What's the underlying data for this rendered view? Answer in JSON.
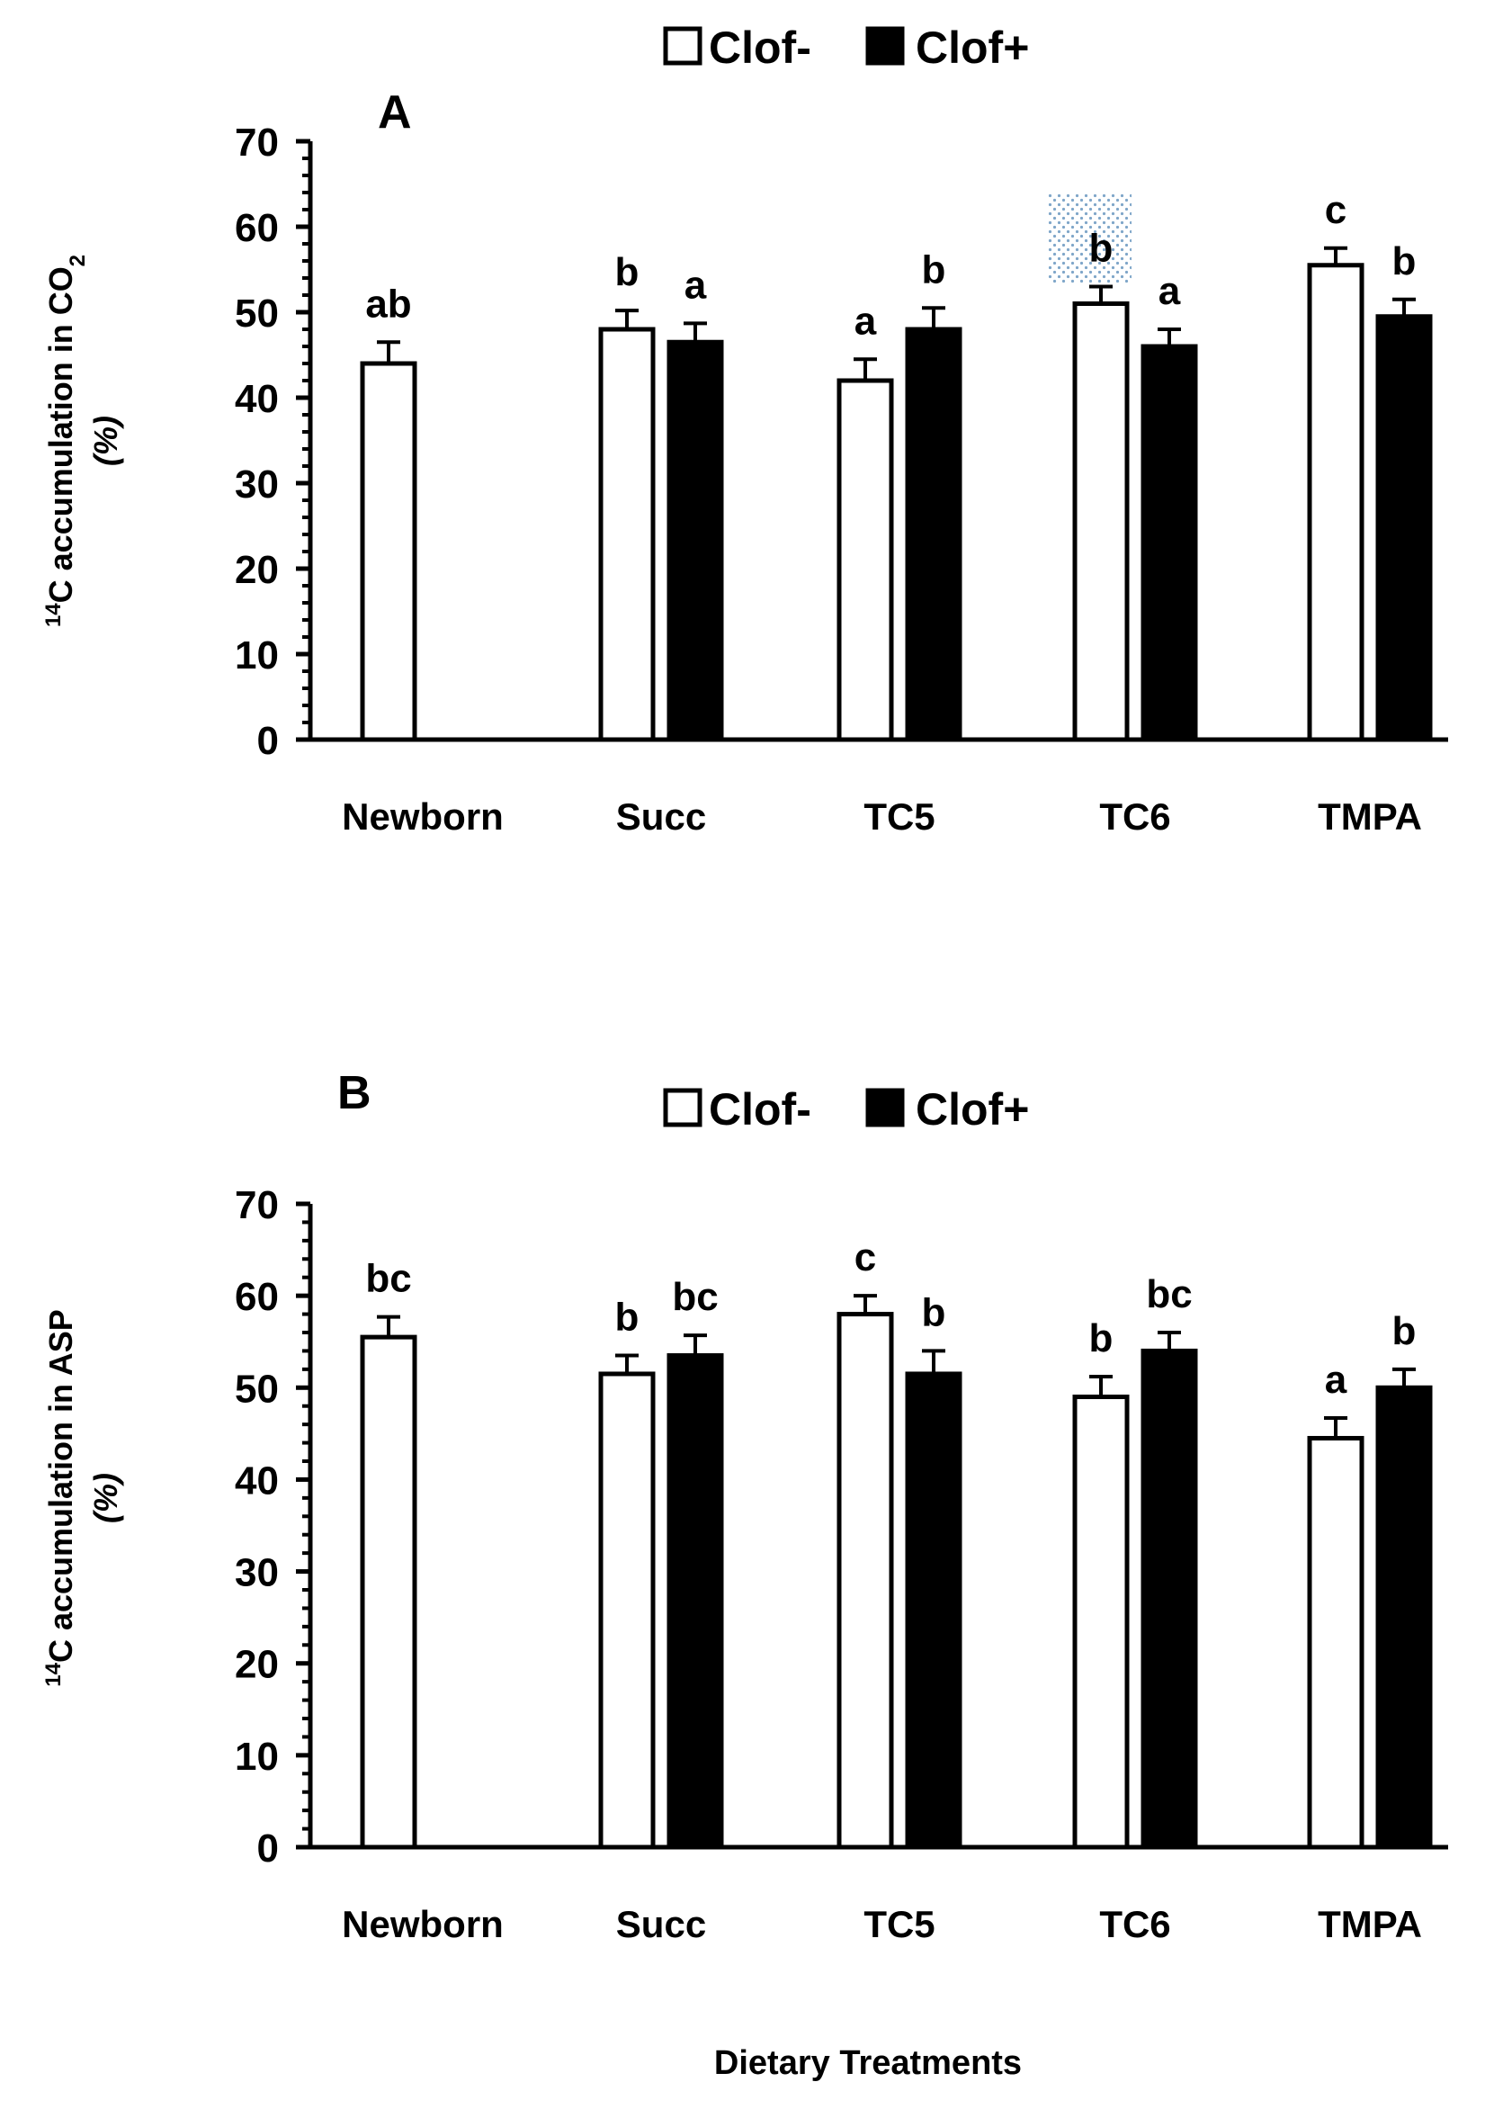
{
  "chart_data": [
    {
      "type": "bar",
      "panel": "A",
      "legend": {
        "placement": "top-center",
        "entries": [
          "Clof-",
          "Clof+"
        ]
      },
      "ylabel": {
        "sup": "14",
        "main": "C accumulation in CO",
        "sub": "2",
        "unit": "(%)"
      },
      "xlabel": "",
      "ylim": [
        0,
        70
      ],
      "yticks": [
        "0",
        "10",
        "20",
        "30",
        "40",
        "50",
        "60",
        "70"
      ],
      "categories": [
        "Newborn",
        "Succ",
        "TC5",
        "TC6",
        "TMPA"
      ],
      "series": [
        {
          "name": "Clof-",
          "fill": "#ffffff",
          "values": [
            44,
            48,
            42,
            51,
            55.5
          ],
          "errors": [
            2.5,
            2.2,
            2.5,
            2.0,
            2.0
          ],
          "labels": [
            "ab",
            "b",
            "a",
            "b",
            "c"
          ]
        },
        {
          "name": "Clof+",
          "fill": "#000000",
          "values": [
            null,
            46.5,
            48,
            46,
            49.5
          ],
          "errors": [
            null,
            2.2,
            2.5,
            2.0,
            2.0
          ],
          "labels": [
            null,
            "a",
            "b",
            "a",
            "b"
          ]
        }
      ]
    },
    {
      "type": "bar",
      "panel": "B",
      "legend": {
        "placement": "top-center",
        "entries": [
          "Clof-",
          "Clof+"
        ]
      },
      "ylabel": {
        "sup": "14",
        "main": "C accumulation in ASP",
        "sub": "",
        "unit": "(%)"
      },
      "xlabel": "Dietary Treatments",
      "ylim": [
        0,
        70
      ],
      "yticks": [
        "0",
        "10",
        "20",
        "30",
        "40",
        "50",
        "60",
        "70"
      ],
      "categories": [
        "Newborn",
        "Succ",
        "TC5",
        "TC6",
        "TMPA"
      ],
      "series": [
        {
          "name": "Clof-",
          "fill": "#ffffff",
          "values": [
            55.5,
            51.5,
            58,
            49,
            44.5
          ],
          "errors": [
            2.2,
            2.0,
            2.0,
            2.2,
            2.2
          ],
          "labels": [
            "bc",
            "b",
            "c",
            "b",
            "a"
          ]
        },
        {
          "name": "Clof+",
          "fill": "#000000",
          "values": [
            null,
            53.5,
            51.5,
            54,
            50
          ],
          "errors": [
            null,
            2.2,
            2.5,
            2.0,
            2.0
          ],
          "labels": [
            null,
            "bc",
            "b",
            "bc",
            "b"
          ]
        }
      ]
    }
  ],
  "colors": {
    "axis": "#000000",
    "clof_minus": "#ffffff",
    "clof_plus": "#000000",
    "highlight_dots": "#7fa6c9"
  }
}
